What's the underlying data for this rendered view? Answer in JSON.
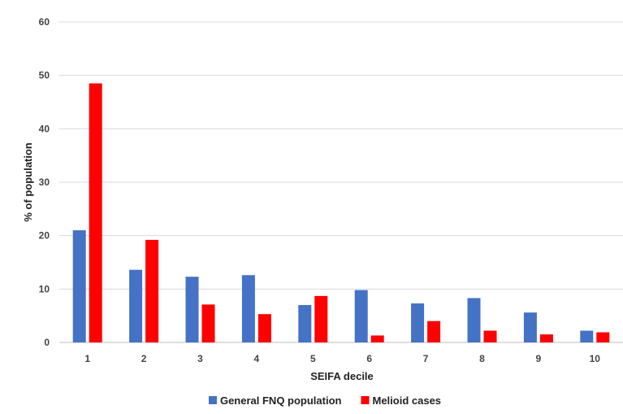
{
  "chart_data": {
    "type": "bar",
    "title": "",
    "xlabel": "SEIFA decile",
    "ylabel": "% of population",
    "ylim": [
      0,
      60
    ],
    "yticks": [
      0,
      10,
      20,
      30,
      40,
      50,
      60
    ],
    "grid": true,
    "legend_position": "bottom",
    "categories": [
      "1",
      "2",
      "3",
      "4",
      "5",
      "6",
      "7",
      "8",
      "9",
      "10"
    ],
    "series": [
      {
        "name": "General FNQ population",
        "color": "#4472C4",
        "values": [
          21.0,
          13.6,
          12.3,
          12.6,
          7.0,
          9.8,
          7.3,
          8.3,
          5.6,
          2.2
        ]
      },
      {
        "name": "Melioid cases",
        "color": "#FF0000",
        "values": [
          48.5,
          19.2,
          7.1,
          5.3,
          8.7,
          1.3,
          4.0,
          2.2,
          1.5,
          1.9
        ]
      }
    ]
  }
}
